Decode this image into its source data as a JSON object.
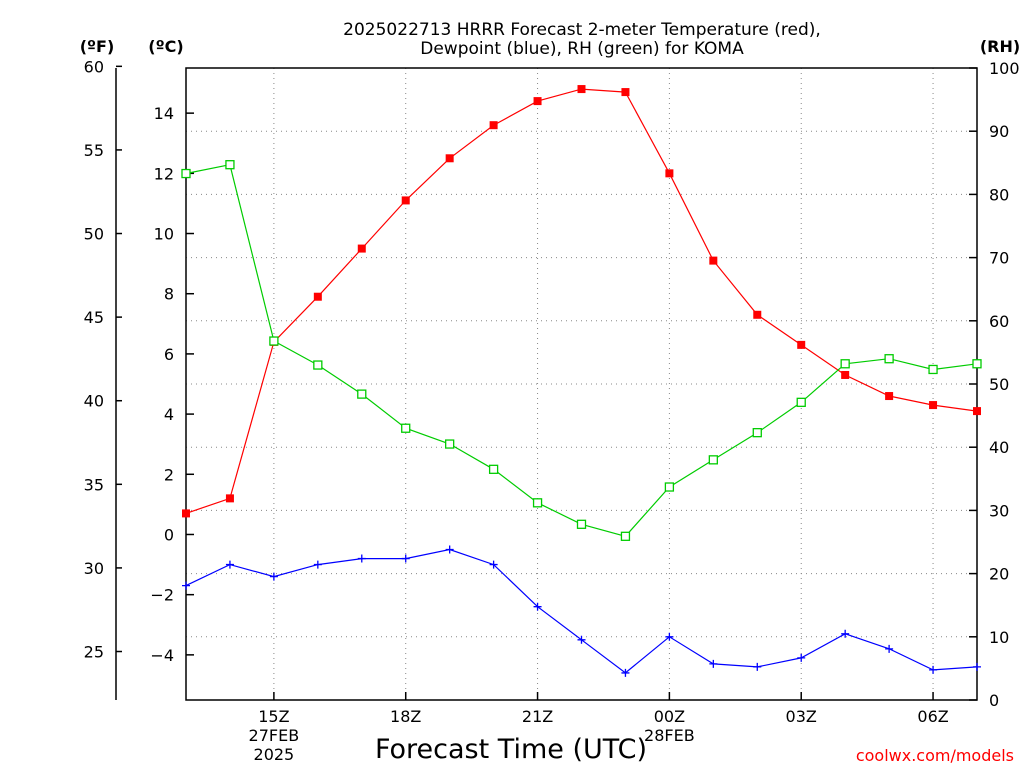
{
  "chart_data": {
    "type": "line",
    "title_lines": [
      "2025022713 HRRR Forecast 2-meter Temperature (red),",
      "Dewpoint (blue), RH (green) for KOMA"
    ],
    "xlabel": "Forecast Time (UTC)",
    "watermark": "coolwx.com/models",
    "unit_labels": {
      "fahrenheit": "(ºF)",
      "celsius": "(ºC)",
      "rh": "(RH)"
    },
    "x_tick_labels": [
      {
        "hour": 2,
        "lines": [
          "15Z",
          "27FEB",
          "2025"
        ]
      },
      {
        "hour": 5,
        "lines": [
          "18Z"
        ]
      },
      {
        "hour": 8,
        "lines": [
          "21Z"
        ]
      },
      {
        "hour": 11,
        "lines": [
          "00Z",
          "28FEB"
        ]
      },
      {
        "hour": 14,
        "lines": [
          "03Z"
        ]
      },
      {
        "hour": 17,
        "lines": [
          "06Z"
        ]
      }
    ],
    "x": [
      "13Z",
      "14Z",
      "15Z",
      "16Z",
      "17Z",
      "18Z",
      "19Z",
      "20Z",
      "21Z",
      "22Z",
      "23Z",
      "00Z",
      "01Z",
      "02Z",
      "03Z",
      "04Z",
      "05Z",
      "06Z",
      "07Z"
    ],
    "xlim": [
      0,
      18
    ],
    "ylim_celsius": [
      -5.5,
      15.5
    ],
    "ylim_rh": [
      0,
      100
    ],
    "ylim_fahrenheit": [
      22.1,
      59.9
    ],
    "y_ticks_celsius": [
      -4,
      -2,
      0,
      2,
      4,
      6,
      8,
      10,
      12,
      14
    ],
    "y_tick_labels_celsius": [
      "−4",
      "−2",
      "0",
      "2",
      "4",
      "6",
      "8",
      "10",
      "12",
      "14"
    ],
    "y_ticks_fahrenheit": [
      25,
      30,
      35,
      40,
      45,
      50,
      55,
      60
    ],
    "y_ticks_rh": [
      0,
      10,
      20,
      30,
      40,
      50,
      60,
      70,
      80,
      90,
      100
    ],
    "grid": true,
    "series": [
      {
        "key": "temperature",
        "axis": "celsius",
        "color": "#ff0000",
        "marker": "filled-square",
        "values": [
          0.7,
          1.2,
          6.4,
          7.9,
          9.5,
          11.1,
          12.5,
          13.6,
          14.4,
          14.8,
          14.7,
          12.0,
          9.1,
          7.3,
          6.3,
          5.3,
          4.6,
          4.3,
          4.1
        ]
      },
      {
        "key": "dewpoint",
        "axis": "celsius",
        "color": "#0000ff",
        "marker": "plus",
        "values": [
          -1.7,
          -1.0,
          -1.4,
          -1.0,
          -0.8,
          -0.8,
          -0.5,
          -1.0,
          -2.4,
          -3.5,
          -4.6,
          -3.4,
          -4.3,
          -4.4,
          -4.1,
          -3.3,
          -3.8,
          -4.5,
          -4.4
        ]
      },
      {
        "key": "rh",
        "axis": "rh",
        "color": "#00cc00",
        "marker": "open-square",
        "values": [
          83.3,
          84.7,
          56.8,
          53.0,
          48.4,
          43.0,
          40.5,
          36.5,
          31.2,
          27.8,
          25.9,
          33.7,
          38.0,
          42.3,
          47.1,
          53.2,
          54.0,
          52.3,
          53.2
        ]
      }
    ]
  }
}
